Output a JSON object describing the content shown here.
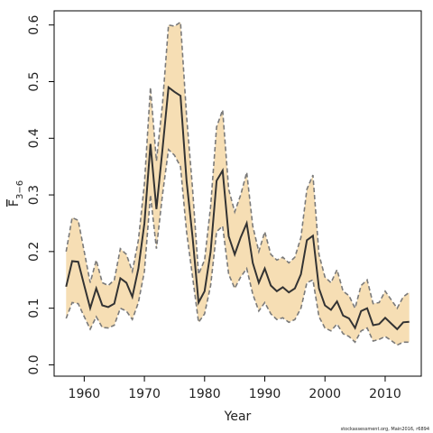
{
  "chart_data": {
    "type": "area",
    "xlabel": "Year",
    "ylabel": {
      "main": "F",
      "subscript": "3−6"
    },
    "credit": "stockassessment.org, Main2016, r6894",
    "xlim": [
      1955,
      2016
    ],
    "ylim": [
      -0.02,
      0.625
    ],
    "xticks": [
      1960,
      1970,
      1980,
      1990,
      2000,
      2010
    ],
    "yticks": [
      0.0,
      0.1,
      0.2,
      0.3,
      0.4,
      0.5,
      0.6
    ],
    "ytick_labels": [
      "0.0",
      "0.1",
      "0.2",
      "0.3",
      "0.4",
      "0.5",
      "0.6"
    ],
    "colors": {
      "band_fill": "#f6deb4",
      "bound_line": "#7a7a7a",
      "estimate_line": "#333333",
      "axis": "#000000"
    },
    "grid": false,
    "series": [
      {
        "role": "estimate",
        "x": [
          1957,
          1958,
          1959,
          1960,
          1961,
          1962,
          1963,
          1964,
          1965,
          1966,
          1967,
          1968,
          1969,
          1970,
          1971,
          1972,
          1973,
          1974,
          1975,
          1976,
          1977,
          1978,
          1979,
          1980,
          1981,
          1982,
          1983,
          1984,
          1985,
          1986,
          1987,
          1988,
          1989,
          1990,
          1991,
          1992,
          1993,
          1994,
          1995,
          1996,
          1997,
          1998,
          1999,
          2000,
          2001,
          2002,
          2003,
          2004,
          2005,
          2006,
          2007,
          2008,
          2009,
          2010,
          2011,
          2012,
          2013,
          2014
        ],
        "values": [
          0.138,
          0.183,
          0.182,
          0.14,
          0.1,
          0.135,
          0.105,
          0.102,
          0.108,
          0.153,
          0.145,
          0.12,
          0.17,
          0.25,
          0.39,
          0.275,
          0.38,
          0.49,
          0.482,
          0.475,
          0.325,
          0.225,
          0.11,
          0.13,
          0.2,
          0.325,
          0.343,
          0.227,
          0.195,
          0.225,
          0.25,
          0.18,
          0.145,
          0.17,
          0.14,
          0.13,
          0.137,
          0.128,
          0.135,
          0.16,
          0.22,
          0.228,
          0.135,
          0.105,
          0.097,
          0.112,
          0.087,
          0.082,
          0.065,
          0.095,
          0.1,
          0.07,
          0.072,
          0.083,
          0.073,
          0.063,
          0.075,
          0.076
        ]
      },
      {
        "role": "upper",
        "x": [
          1957,
          1958,
          1959,
          1960,
          1961,
          1962,
          1963,
          1964,
          1965,
          1966,
          1967,
          1968,
          1969,
          1970,
          1971,
          1972,
          1973,
          1974,
          1975,
          1976,
          1977,
          1978,
          1979,
          1980,
          1981,
          1982,
          1983,
          1984,
          1985,
          1986,
          1987,
          1988,
          1989,
          1990,
          1991,
          1992,
          1993,
          1994,
          1995,
          1996,
          1997,
          1998,
          1999,
          2000,
          2001,
          2002,
          2003,
          2004,
          2005,
          2006,
          2007,
          2008,
          2009,
          2010,
          2011,
          2012,
          2013,
          2014
        ],
        "values": [
          0.2,
          0.26,
          0.255,
          0.2,
          0.145,
          0.185,
          0.145,
          0.14,
          0.15,
          0.205,
          0.195,
          0.165,
          0.22,
          0.32,
          0.49,
          0.36,
          0.46,
          0.6,
          0.598,
          0.605,
          0.44,
          0.31,
          0.16,
          0.185,
          0.28,
          0.42,
          0.45,
          0.31,
          0.27,
          0.3,
          0.34,
          0.245,
          0.2,
          0.235,
          0.195,
          0.185,
          0.19,
          0.18,
          0.19,
          0.225,
          0.31,
          0.335,
          0.195,
          0.155,
          0.145,
          0.168,
          0.13,
          0.122,
          0.1,
          0.14,
          0.15,
          0.108,
          0.11,
          0.13,
          0.115,
          0.1,
          0.12,
          0.128
        ]
      },
      {
        "role": "lower",
        "x": [
          1957,
          1958,
          1959,
          1960,
          1961,
          1962,
          1963,
          1964,
          1965,
          1966,
          1967,
          1968,
          1969,
          1970,
          1971,
          1972,
          1973,
          1974,
          1975,
          1976,
          1977,
          1978,
          1979,
          1980,
          1981,
          1982,
          1983,
          1984,
          1985,
          1986,
          1987,
          1988,
          1989,
          1990,
          1991,
          1992,
          1993,
          1994,
          1995,
          1996,
          1997,
          1998,
          1999,
          2000,
          2001,
          2002,
          2003,
          2004,
          2005,
          2006,
          2007,
          2008,
          2009,
          2010,
          2011,
          2012,
          2013,
          2014
        ],
        "values": [
          0.082,
          0.11,
          0.108,
          0.085,
          0.063,
          0.085,
          0.066,
          0.065,
          0.07,
          0.1,
          0.095,
          0.08,
          0.11,
          0.165,
          0.3,
          0.205,
          0.3,
          0.38,
          0.37,
          0.35,
          0.235,
          0.155,
          0.075,
          0.09,
          0.14,
          0.235,
          0.245,
          0.16,
          0.135,
          0.155,
          0.17,
          0.125,
          0.095,
          0.11,
          0.09,
          0.08,
          0.083,
          0.075,
          0.08,
          0.1,
          0.145,
          0.15,
          0.085,
          0.065,
          0.06,
          0.072,
          0.055,
          0.05,
          0.04,
          0.06,
          0.065,
          0.042,
          0.045,
          0.05,
          0.043,
          0.035,
          0.04,
          0.04
        ]
      }
    ]
  }
}
